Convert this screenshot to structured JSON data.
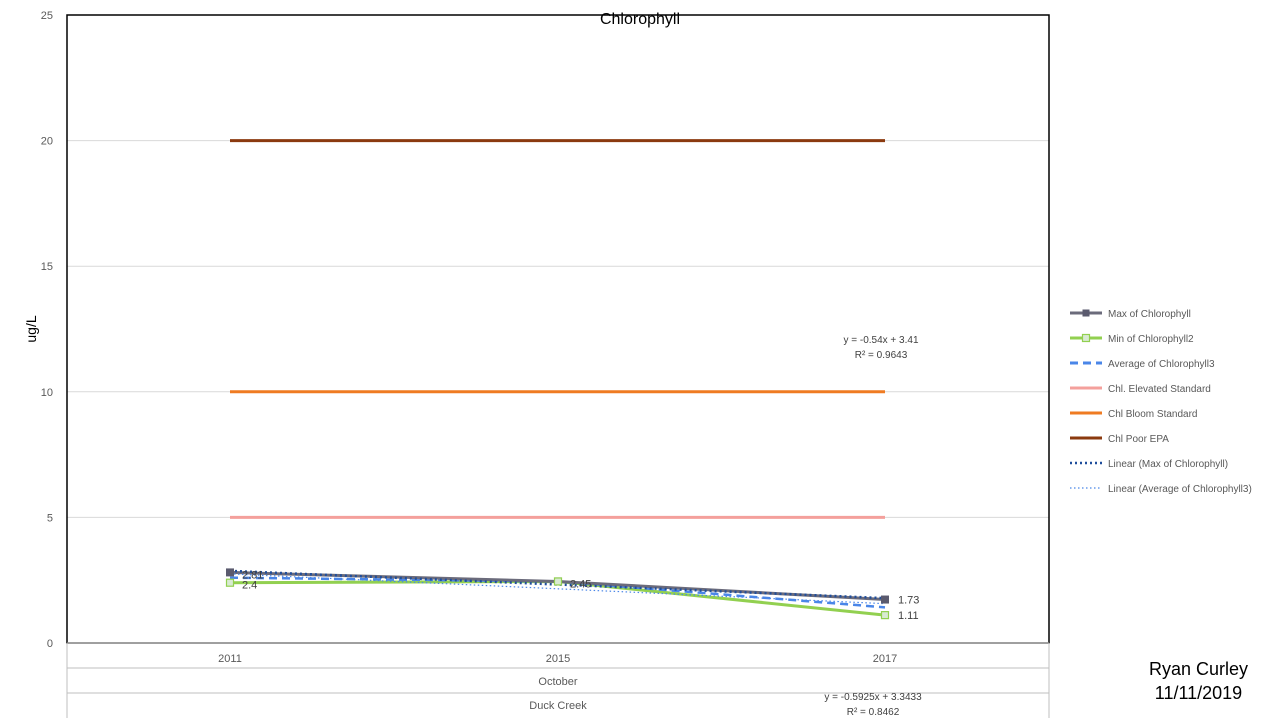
{
  "chart_data": {
    "type": "line",
    "title": "Chlorophyll",
    "ylabel": "ug/L",
    "xlabel": "",
    "ylim": [
      0,
      25
    ],
    "yticks": [
      0,
      5,
      10,
      15,
      20,
      25
    ],
    "categories": [
      "2011",
      "2015",
      "2017"
    ],
    "category_groups": [
      "October",
      "Duck Creek"
    ],
    "grid": true,
    "legend_position": "right",
    "series": [
      {
        "name": "Max of Chlorophyll",
        "values": [
          2.81,
          2.45,
          1.73
        ],
        "color": "#6b6b7b",
        "style": "solid",
        "marker": "square-filled"
      },
      {
        "name": "Min of Chlorophyll2",
        "values": [
          2.4,
          2.45,
          1.11
        ],
        "color": "#92d050",
        "style": "solid",
        "marker": "square-open"
      },
      {
        "name": "Average of Chlorophyll3",
        "values": [
          2.6,
          2.45,
          1.42
        ],
        "color": "#4a86e8",
        "style": "dashed",
        "marker": "none"
      },
      {
        "name": "Chl. Elevated Standard",
        "values": [
          5,
          5,
          5
        ],
        "color": "#f4a09c",
        "style": "solid",
        "marker": "none"
      },
      {
        "name": "Chl Bloom Standard",
        "values": [
          10,
          10,
          10
        ],
        "color": "#ef7b22",
        "style": "solid",
        "marker": "none"
      },
      {
        "name": "Chl Poor EPA",
        "values": [
          20,
          20,
          20
        ],
        "color": "#8b3a0f",
        "style": "solid",
        "marker": "none"
      }
    ],
    "trendlines": [
      {
        "name": "Linear (Max of Chlorophyll)",
        "color": "#1f4e9c",
        "style": "dotted",
        "slope": -0.5425,
        "intercept": 3.4133,
        "equation": "y = -0.54x + 3.41",
        "r2": "R² = 0.9643"
      },
      {
        "name": "Linear (Average of Chlorophyll3)",
        "color": "#4a86e8",
        "style": "dotted-thin",
        "slope": -0.5925,
        "intercept": 3.3433,
        "equation": "y = -0.5925x + 3.3433",
        "r2": "R² = 0.8462"
      }
    ],
    "data_labels": [
      {
        "series": 0,
        "index": 0,
        "text": "2.81"
      },
      {
        "series": 1,
        "index": 0,
        "text": "2.4"
      },
      {
        "series": 1,
        "index": 1,
        "text": "2.45"
      },
      {
        "series": 0,
        "index": 2,
        "text": "1.73"
      },
      {
        "series": 1,
        "index": 2,
        "text": "1.11"
      }
    ]
  },
  "author": {
    "name": "Ryan Curley",
    "date": "11/11/2019"
  }
}
